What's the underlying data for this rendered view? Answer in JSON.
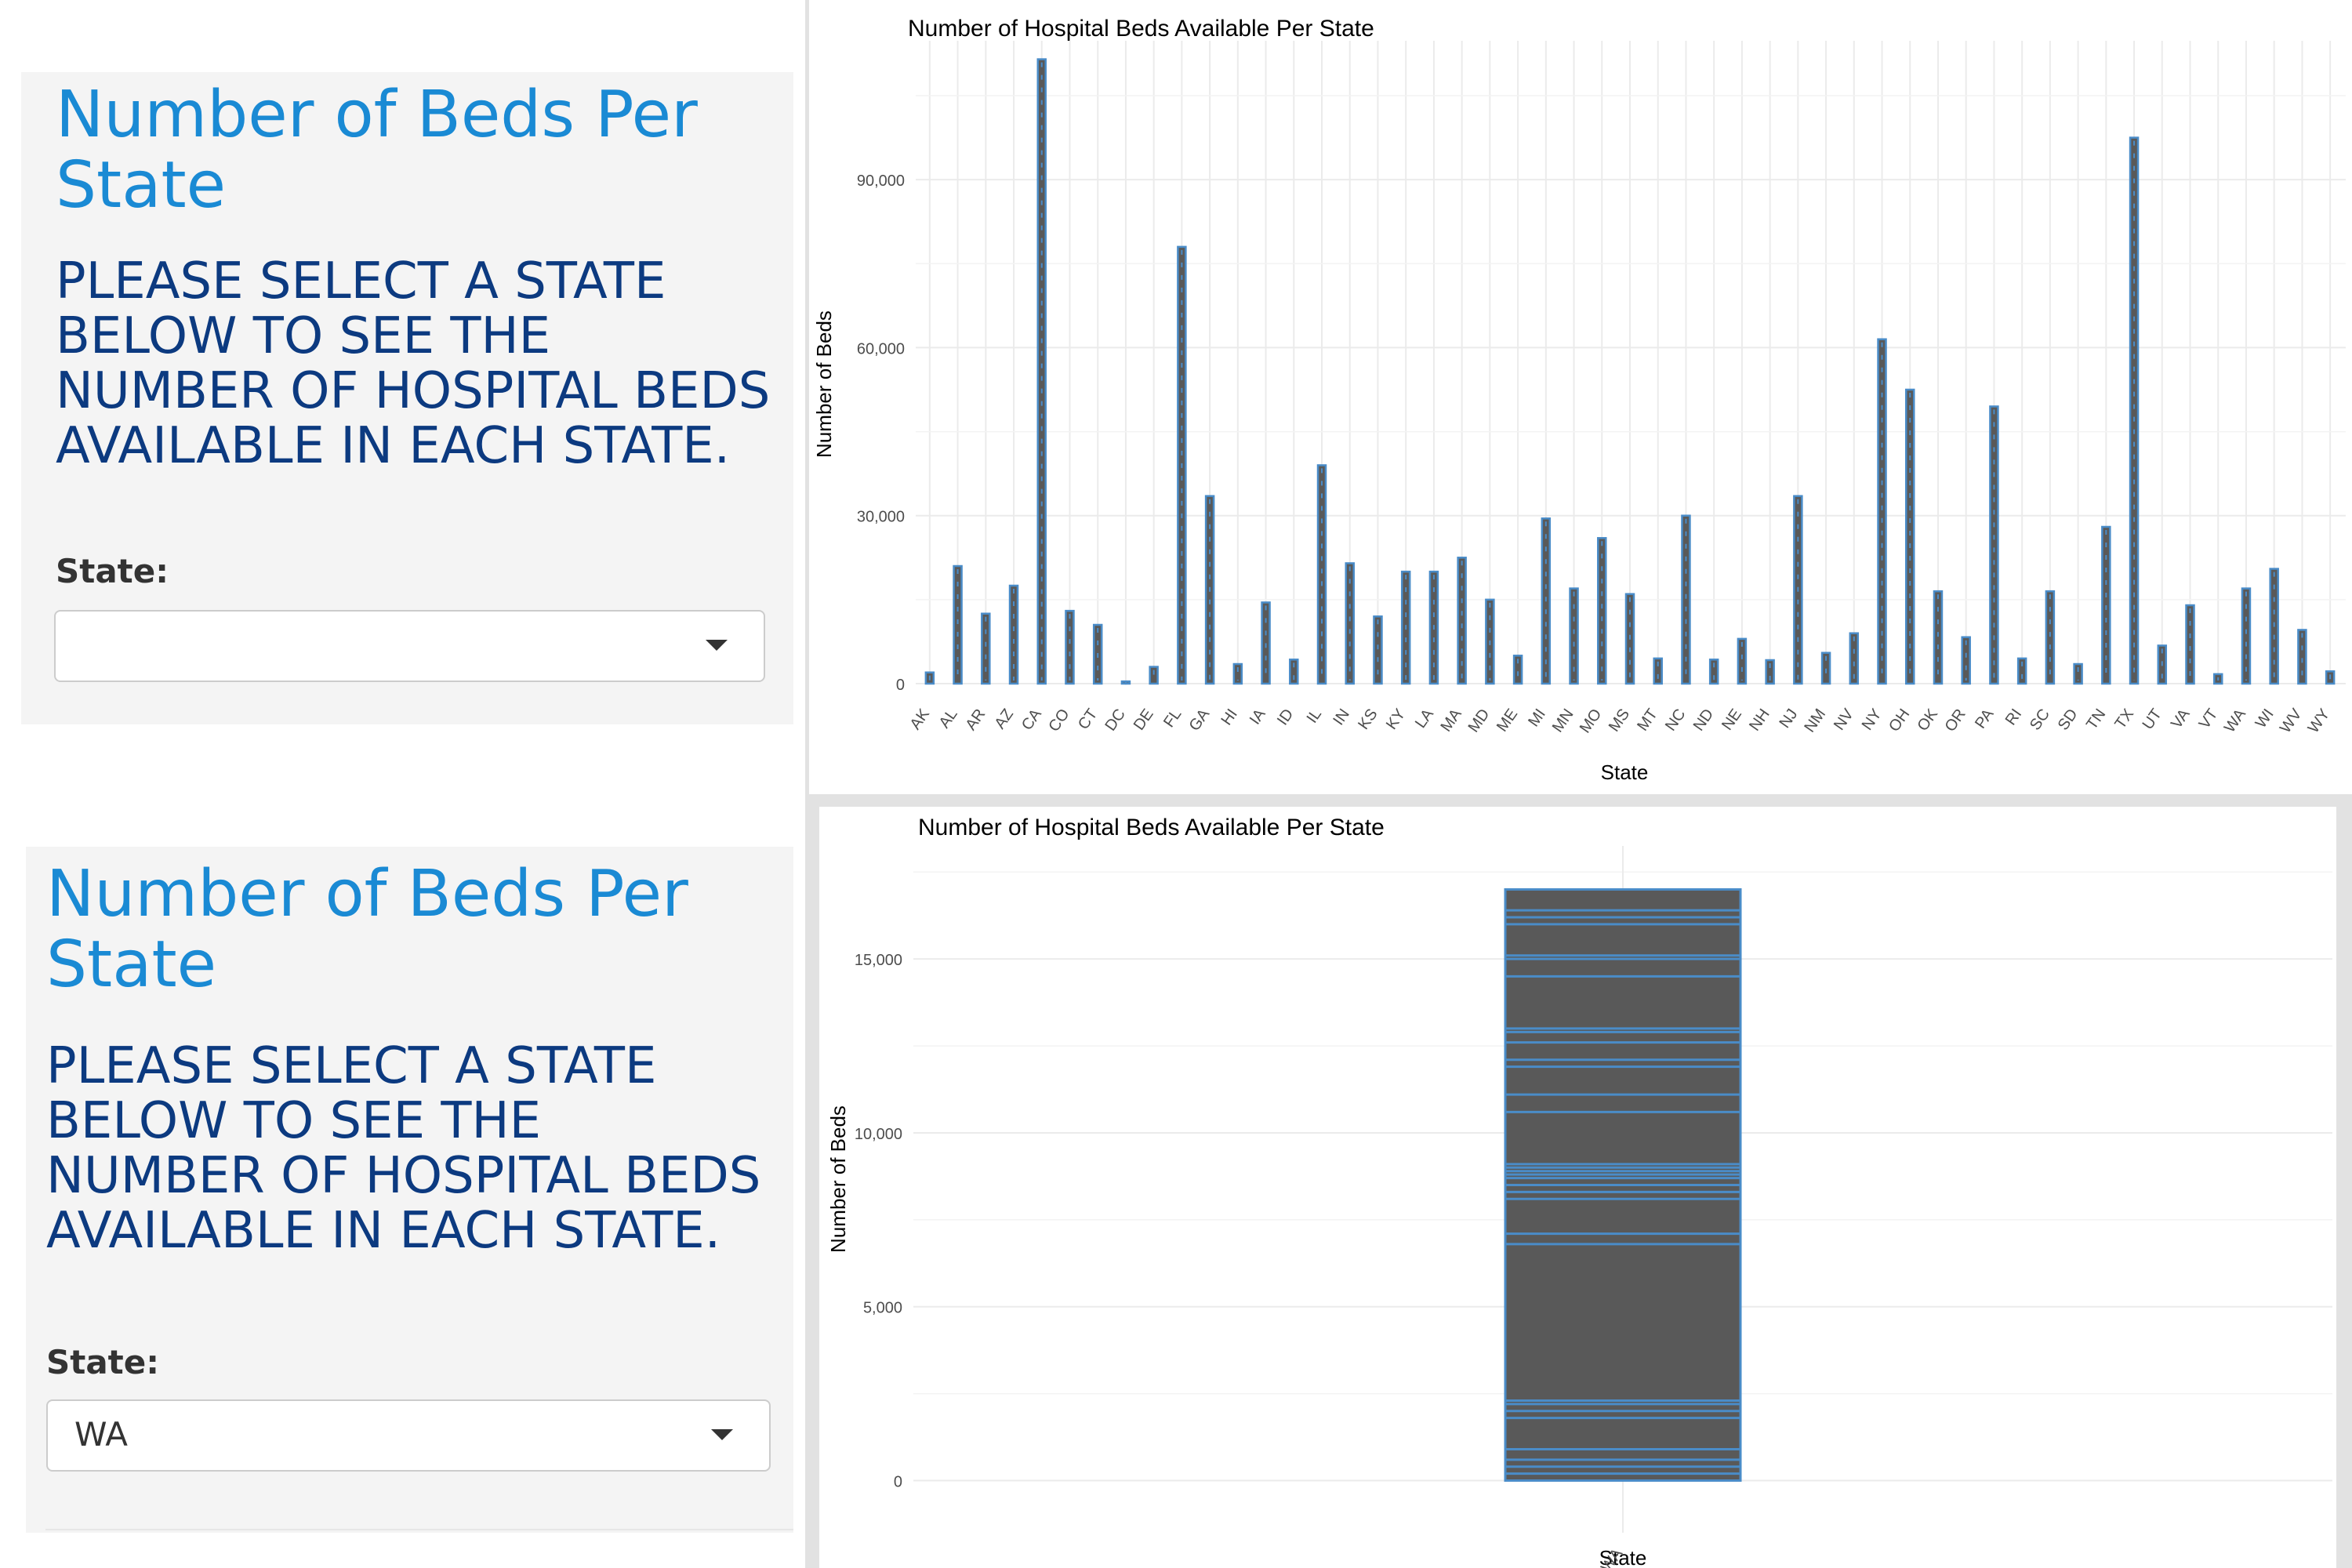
{
  "top_sidebar": {
    "title": "Number of Beds Per State",
    "description": "PLEASE SELECT A STATE BELOW TO SEE THE NUMBER OF HOSPITAL BEDS AVAILABLE IN EACH STATE.",
    "field_label": "State:",
    "selected_state": ""
  },
  "bottom_sidebar": {
    "title": "Number of Beds Per State",
    "description": "PLEASE SELECT A STATE BELOW TO SEE THE NUMBER OF HOSPITAL BEDS AVAILABLE IN EACH STATE.",
    "field_label": "State:",
    "selected_state": "WA"
  },
  "colors": {
    "bar_fill": "#595959",
    "bar_outline": "#4a8cc8",
    "accent_title": "#1a8ad4",
    "description_text": "#0c3a80"
  },
  "chart_data": [
    {
      "type": "bar",
      "title": "Number of Hospital Beds Available Per State",
      "xlabel": "State",
      "ylabel": "Number of Beds",
      "ylim": [
        0,
        112000
      ],
      "yticks": [
        0,
        30000,
        60000,
        90000
      ],
      "ytick_labels": [
        "0",
        "30,000",
        "60,000",
        "90,000"
      ],
      "grid": true,
      "legend": "none",
      "categories": [
        "AK",
        "AL",
        "AR",
        "AZ",
        "CA",
        "CO",
        "CT",
        "DC",
        "DE",
        "FL",
        "GA",
        "HI",
        "IA",
        "ID",
        "IL",
        "IN",
        "KS",
        "KY",
        "LA",
        "MA",
        "MD",
        "ME",
        "MI",
        "MN",
        "MO",
        "MS",
        "MT",
        "NC",
        "ND",
        "NE",
        "NH",
        "NJ",
        "NM",
        "NV",
        "NY",
        "OH",
        "OK",
        "OR",
        "PA",
        "RI",
        "SC",
        "SD",
        "TN",
        "TX",
        "UT",
        "VA",
        "VT",
        "WA",
        "WI",
        "WV",
        "WY"
      ],
      "values": [
        2000,
        21000,
        12500,
        17500,
        111500,
        13000,
        10500,
        400,
        3000,
        78000,
        33500,
        3500,
        14500,
        4300,
        39000,
        21500,
        12000,
        20000,
        20000,
        22500,
        15000,
        5000,
        29500,
        17000,
        26000,
        16000,
        4500,
        30000,
        4300,
        8000,
        4200,
        33500,
        5500,
        9000,
        61500,
        52500,
        16500,
        8300,
        49500,
        4500,
        16500,
        3500,
        28000,
        97500,
        6800,
        14000,
        1700,
        17000,
        20500,
        9600,
        2200
      ]
    },
    {
      "type": "bar",
      "title": "Number of Hospital Beds Available Per State",
      "xlabel": "State",
      "ylabel": "Number of Beds",
      "ylim": [
        -1500,
        17800
      ],
      "yticks": [
        0,
        5000,
        10000,
        15000
      ],
      "ytick_labels": [
        "0",
        "5,000",
        "10,000",
        "15,000"
      ],
      "grid": true,
      "legend": "none",
      "categories": [
        "WA"
      ],
      "values": [
        17000
      ],
      "stacked_record_boundaries": [
        200,
        400,
        600,
        900,
        1800,
        2000,
        2200,
        2300,
        6800,
        7100,
        8100,
        8300,
        8500,
        8700,
        8800,
        8900,
        9000,
        9100,
        10600,
        11100,
        11900,
        12100,
        12600,
        12900,
        13000,
        14500,
        15000,
        15100,
        16000,
        16200,
        16400
      ]
    }
  ]
}
